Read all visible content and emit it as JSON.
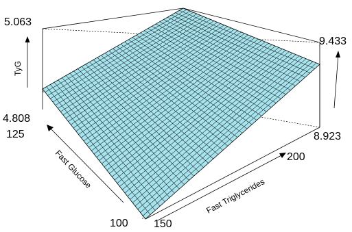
{
  "chart_data": {
    "type": "surface",
    "xlabel": "Fast Triglycerides",
    "ylabel": "Fast Glucose",
    "zlabel": "TyG",
    "x_ticks": [
      "150",
      "200"
    ],
    "y_ticks": [
      "100",
      "125"
    ],
    "z_range_left": {
      "min": "4.808",
      "max": "5.063"
    },
    "z_range_right": {
      "min": "8.923",
      "max": "9.433"
    },
    "surface_color": "#a8e4ee",
    "mesh_color": "#1e2a2d"
  }
}
